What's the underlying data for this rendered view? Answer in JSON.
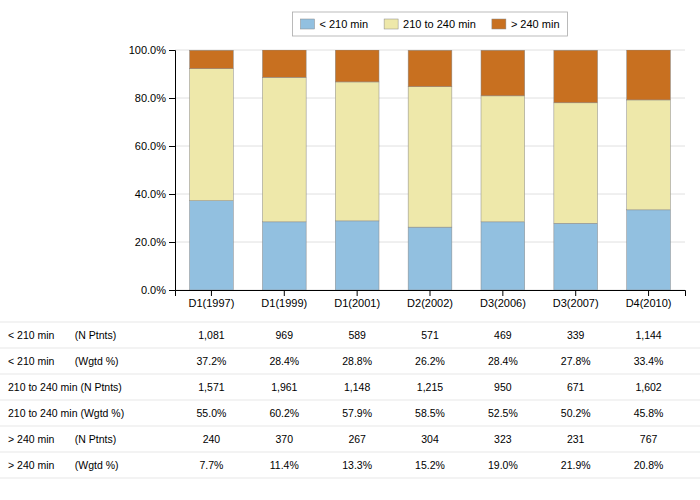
{
  "chart_data": {
    "type": "bar",
    "stacked": true,
    "grid": true,
    "legend": "top",
    "categories": [
      "D1(1997)",
      "D1(1999)",
      "D1(2001)",
      "D2(2002)",
      "D3(2006)",
      "D3(2007)",
      "D4(2010)"
    ],
    "series": [
      {
        "name": "< 210 min",
        "color": "#92C0E0",
        "values": [
          37.2,
          28.4,
          28.8,
          26.2,
          28.4,
          27.8,
          33.4
        ]
      },
      {
        "name": "210 to 240 min",
        "color": "#EEE8AA",
        "values": [
          55.0,
          60.2,
          57.9,
          58.5,
          52.5,
          50.2,
          45.8
        ]
      },
      {
        "name": "> 240 min",
        "color": "#C87020",
        "values": [
          7.7,
          11.4,
          13.3,
          15.2,
          19.0,
          21.9,
          20.8
        ]
      }
    ],
    "ylim": [
      0,
      100
    ],
    "yticks": [
      {
        "value": 0,
        "label": "0.0%"
      },
      {
        "value": 20,
        "label": "20.0%"
      },
      {
        "value": 40,
        "label": "40.0%"
      },
      {
        "value": 60,
        "label": "60.0%"
      },
      {
        "value": 80,
        "label": "80.0%"
      },
      {
        "value": 100,
        "label": "100.0%"
      }
    ],
    "table": {
      "row_labels": [
        "< 210 min       (N Ptnts)",
        "< 210 min       (Wgtd %)",
        "210 to 240 min (N Ptnts)",
        "210 to 240 min (Wgtd %)",
        "> 240 min       (N Ptnts)",
        "> 240 min       (Wgtd %)"
      ],
      "rows": [
        [
          "1,081",
          "969",
          "589",
          "571",
          "469",
          "339",
          "1,144"
        ],
        [
          "37.2%",
          "28.4%",
          "28.8%",
          "26.2%",
          "28.4%",
          "27.8%",
          "33.4%"
        ],
        [
          "1,571",
          "1,961",
          "1,148",
          "1,215",
          "950",
          "671",
          "1,602"
        ],
        [
          "55.0%",
          "60.2%",
          "57.9%",
          "58.5%",
          "52.5%",
          "50.2%",
          "45.8%"
        ],
        [
          "240",
          "370",
          "267",
          "304",
          "323",
          "231",
          "767"
        ],
        [
          "7.7%",
          "11.4%",
          "13.3%",
          "15.2%",
          "19.0%",
          "21.9%",
          "20.8%"
        ]
      ]
    }
  }
}
